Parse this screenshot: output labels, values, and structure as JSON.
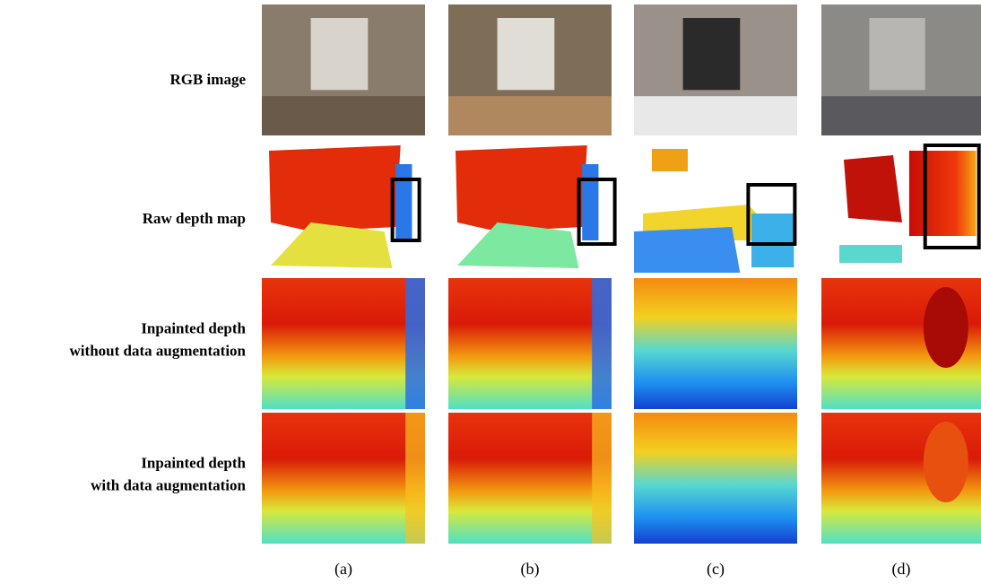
{
  "row_labels": [
    [
      "RGB image"
    ],
    [
      "Raw depth map"
    ],
    [
      "Inpainted depth",
      "without data augmentation"
    ],
    [
      "Inpainted depth",
      "with data augmentation"
    ]
  ],
  "column_labels": [
    "(a)",
    "(b)",
    "(c)",
    "(d)"
  ]
}
